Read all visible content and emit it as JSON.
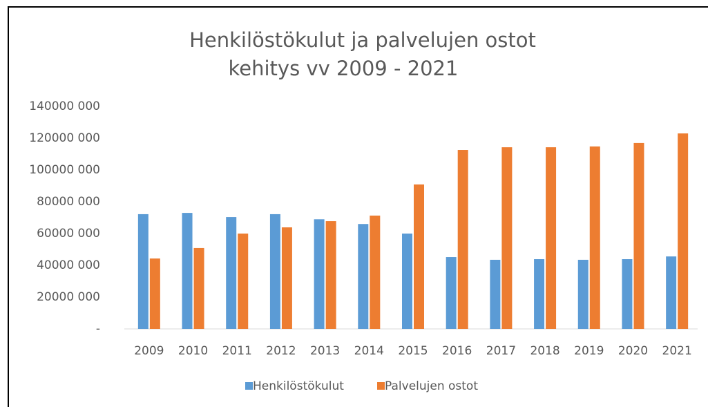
{
  "chart_data": {
    "type": "bar",
    "title": [
      "Henkilöstökulut ja palvelujen ostot",
      "kehitys vv 2009 - 2021"
    ],
    "categories": [
      "2009",
      "2010",
      "2011",
      "2012",
      "2013",
      "2014",
      "2015",
      "2016",
      "2017",
      "2018",
      "2019",
      "2020",
      "2021"
    ],
    "series": [
      {
        "name": "Henkilöstökulut",
        "color": "#5b9bd5",
        "values": [
          72200000,
          73000000,
          70400000,
          72200000,
          69000000,
          66000000,
          60000000,
          45200000,
          43500000,
          43900000,
          43500000,
          43900000,
          45600000
        ]
      },
      {
        "name": "Palvelujen ostot",
        "color": "#ed7d31",
        "values": [
          44300000,
          50900000,
          60000000,
          63900000,
          67800000,
          71300000,
          90900000,
          112600000,
          114300000,
          114300000,
          114800000,
          117000000,
          123000000
        ]
      }
    ],
    "ylim": [
      0,
      140000000
    ],
    "yticks": [
      {
        "value": 0,
        "label": "-"
      },
      {
        "value": 20000000,
        "label": "20000 000"
      },
      {
        "value": 40000000,
        "label": "40000 000"
      },
      {
        "value": 60000000,
        "label": "60000 000"
      },
      {
        "value": 80000000,
        "label": "80000 000"
      },
      {
        "value": 100000000,
        "label": "100000 000"
      },
      {
        "value": 120000000,
        "label": "120000 000"
      },
      {
        "value": 140000000,
        "label": "140000 000"
      }
    ],
    "grid": false,
    "legend": "bottom"
  }
}
